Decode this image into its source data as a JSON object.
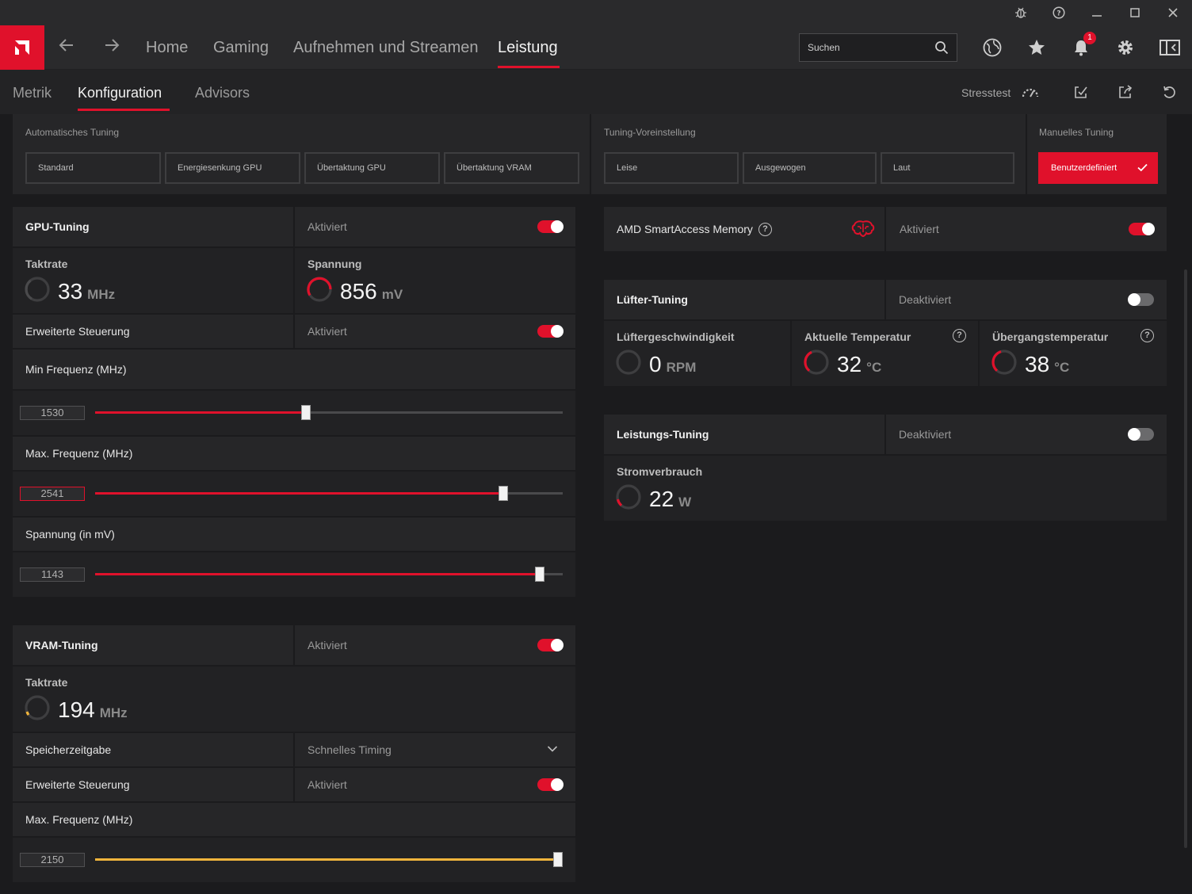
{
  "nav": {
    "items": [
      "Home",
      "Gaming",
      "Aufnehmen und Streamen",
      "Leistung"
    ],
    "search_placeholder": "Suchen",
    "notification_count": "1"
  },
  "subnav": {
    "tabs": [
      "Metrik",
      "Konfiguration",
      "Advisors"
    ],
    "stresstest_label": "Stresstest"
  },
  "presets": {
    "auto_label": "Automatisches Tuning",
    "auto_buttons": [
      "Standard",
      "Energiesenkung GPU",
      "Übertaktung GPU",
      "Übertaktung VRAM"
    ],
    "tuning_label": "Tuning-Voreinstellung",
    "tuning_buttons": [
      "Leise",
      "Ausgewogen",
      "Laut"
    ],
    "manual_label": "Manuelles Tuning",
    "manual_button": "Benutzerdefiniert"
  },
  "gpu": {
    "title": "GPU-Tuning",
    "status": "Aktiviert",
    "enabled": true,
    "clock_label": "Taktrate",
    "clock_value": "33",
    "clock_unit": "MHz",
    "voltage_label": "Spannung",
    "voltage_value": "856",
    "voltage_unit": "mV",
    "advanced_label": "Erweiterte Steuerung",
    "advanced_status": "Aktiviert",
    "min_freq_label": "Min Frequenz (MHz)",
    "min_freq_value": "1530",
    "min_freq_fraction": 0.45,
    "max_freq_label": "Max. Frequenz (MHz)",
    "max_freq_value": "2541",
    "max_freq_fraction": 0.88,
    "voltage_slider_label": "Spannung (in mV)",
    "voltage_slider_value": "1143",
    "voltage_slider_fraction": 0.96
  },
  "vram": {
    "title": "VRAM-Tuning",
    "status": "Aktiviert",
    "clock_label": "Taktrate",
    "clock_value": "194",
    "clock_unit": "MHz",
    "timing_label": "Speicherzeitgabe",
    "timing_value": "Schnelles Timing",
    "advanced_label": "Erweiterte Steuerung",
    "advanced_status": "Aktiviert",
    "max_freq_label": "Max. Frequenz (MHz)",
    "max_freq_value": "2150",
    "max_freq_fraction": 1.0
  },
  "sam": {
    "title": "AMD SmartAccess Memory",
    "status": "Aktiviert"
  },
  "fan": {
    "title": "Lüfter-Tuning",
    "status": "Deaktiviert",
    "speed_label": "Lüftergeschwindigkeit",
    "speed_value": "0",
    "speed_unit": "RPM",
    "temp_label": "Aktuelle Temperatur",
    "temp_value": "32",
    "temp_unit": "°C",
    "junction_label": "Übergangstemperatur",
    "junction_value": "38",
    "junction_unit": "°C"
  },
  "power": {
    "title": "Leistungs-Tuning",
    "status": "Deaktiviert",
    "consumption_label": "Stromverbrauch",
    "consumption_value": "22",
    "consumption_unit": "W"
  },
  "colors": {
    "accent": "#e0112b",
    "vram_accent": "#f0b43c",
    "panel": "#262628",
    "background": "#1b1b1d"
  }
}
